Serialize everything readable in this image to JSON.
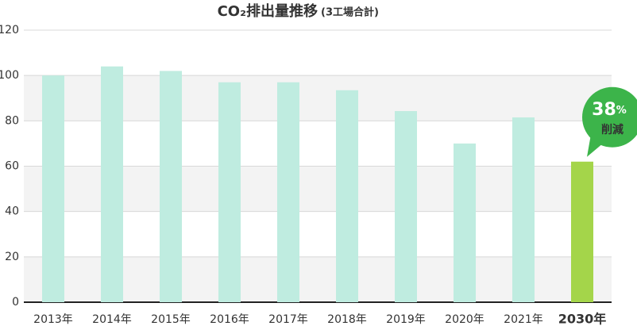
{
  "chart_data": {
    "type": "bar",
    "title": "CO₂排出量推移",
    "subtitle": "(3工場合計)",
    "categories": [
      "2013年",
      "2014年",
      "2015年",
      "2016年",
      "2017年",
      "2018年",
      "2019年",
      "2020年",
      "2021年",
      "2030年"
    ],
    "values": [
      100,
      104,
      102,
      97,
      97,
      93.5,
      84.3,
      70,
      81.5,
      62
    ],
    "color": "#bfece0",
    "colors": [
      "#bfece0",
      "#bfece0",
      "#bfece0",
      "#bfece0",
      "#bfece0",
      "#bfece0",
      "#bfece0",
      "#bfece0",
      "#bfece0",
      "#a4d54a"
    ],
    "ylim": [
      0,
      120
    ],
    "yticks": [
      0,
      20,
      40,
      60,
      80,
      100,
      120
    ],
    "grid": true,
    "annotation": {
      "value": 38,
      "unit": "%",
      "label": "削減",
      "color": "#3cb44a"
    }
  }
}
